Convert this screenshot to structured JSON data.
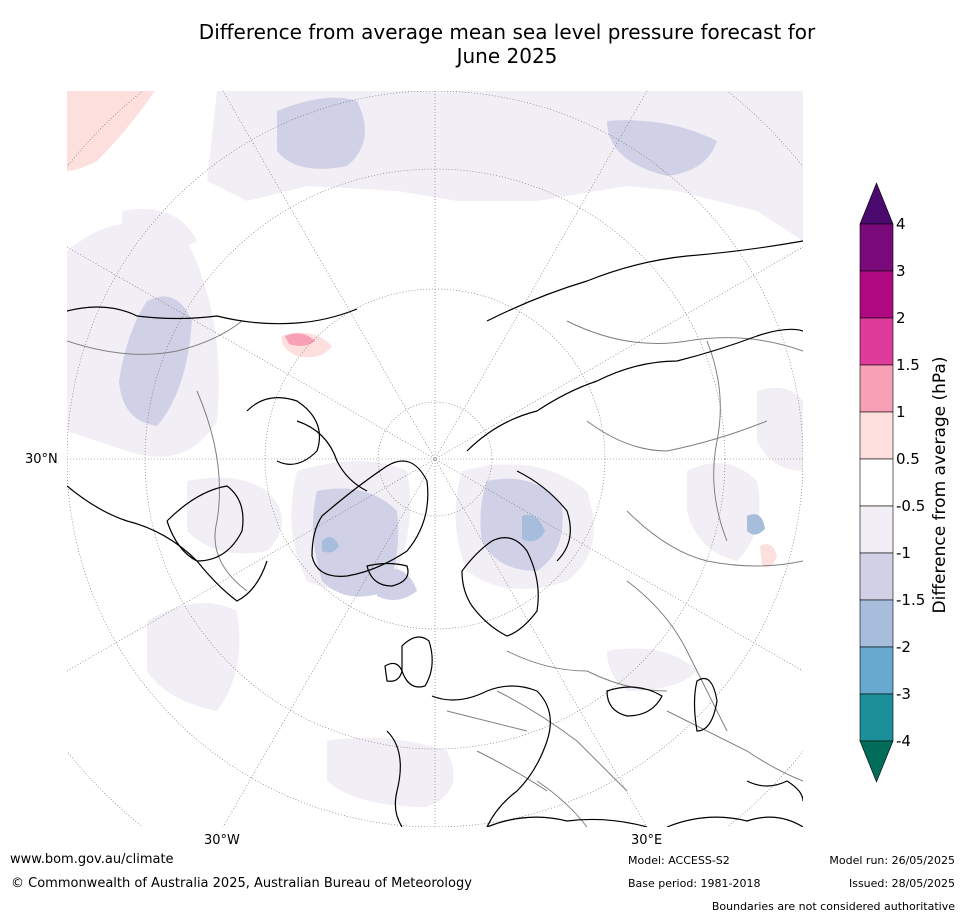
{
  "title_line1": "Difference from average mean sea level pressure forecast for",
  "title_line2": "June 2025",
  "map": {
    "lat_labels": [
      "30°N"
    ],
    "lon_labels": [
      "30°W",
      "30°E"
    ],
    "colors": {
      "land_outline": "#000000",
      "borders": "#808080",
      "graticule": "#6a6a6a"
    }
  },
  "colorbar": {
    "title": "Difference from average (hPa)",
    "levels": [
      "4",
      "3",
      "2",
      "1.5",
      "1",
      "0.5",
      "-0.5",
      "-1",
      "-1.5",
      "-2",
      "-3",
      "-4"
    ],
    "colors": [
      "#4b0a6e",
      "#7a0a7a",
      "#b00a82",
      "#de3b9b",
      "#f7a0b6",
      "#fde0dd",
      "#ffffff",
      "#f2eef6",
      "#d0d1e6",
      "#a6bddb",
      "#67a9cf",
      "#1c9099",
      "#016c59"
    ]
  },
  "footer": {
    "website": "www.bom.gov.au/climate",
    "copyright": "© Commonwealth of Australia 2025, Australian Bureau of Meteorology",
    "model": "Model: ACCESS-S2",
    "base_period": "Base period: 1981-2018",
    "model_run": "Model run: 26/05/2025",
    "issued": "Issued: 28/05/2025",
    "disclaimer": "Boundaries are not considered authoritative"
  }
}
